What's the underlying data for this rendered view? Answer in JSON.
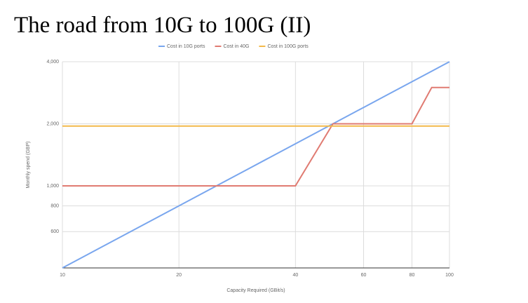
{
  "chart_data": {
    "type": "line",
    "title": "The road from 10G to 100G (II)",
    "x": [
      10,
      20,
      30,
      40,
      50,
      60,
      70,
      80,
      90,
      100
    ],
    "series": [
      {
        "name": "Cost in 10G ports",
        "color": "#79a6ee",
        "values": [
          400,
          800,
          1200,
          1600,
          2000,
          2400,
          2800,
          3200,
          3600,
          4000
        ]
      },
      {
        "name": "Cost in 40G",
        "color": "#e07b72",
        "values": [
          1000,
          1000,
          1000,
          1000,
          2000,
          2000,
          2000,
          2000,
          3000,
          3000
        ]
      },
      {
        "name": "Cost in 100G ports",
        "color": "#f3b94a",
        "values": [
          1950,
          1950,
          1950,
          1950,
          1950,
          1950,
          1950,
          1950,
          1950,
          1950
        ]
      }
    ],
    "xlabel": "Capacity Required (GBit/s)",
    "ylabel": "Monthly spend (GBP)",
    "xlog": true,
    "ylog": true,
    "xlim": [
      10,
      100
    ],
    "xticks": [
      10,
      20,
      40,
      60,
      80,
      100
    ],
    "ylim": [
      400,
      4000
    ],
    "yticks": [
      600,
      800,
      {
        "value": 1000,
        "label": "1,000"
      },
      {
        "value": 2000,
        "label": "2,000"
      },
      {
        "value": 4000,
        "label": "4,000"
      }
    ],
    "grid": true,
    "legend": "top"
  }
}
